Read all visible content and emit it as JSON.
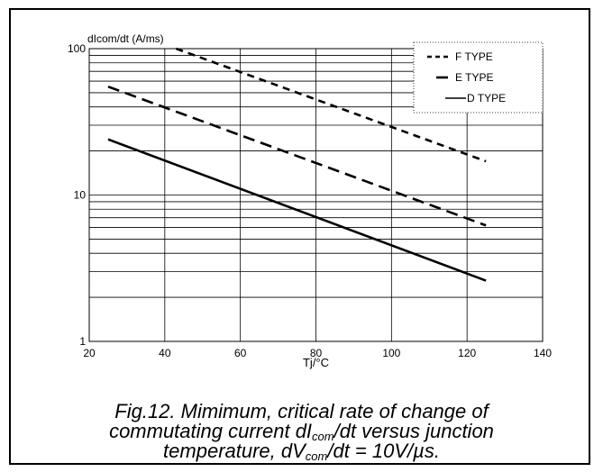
{
  "chart_data": {
    "type": "line",
    "xlabel": "Tj/°C",
    "ylabel": "dIcom/dt (A/ms)",
    "xlim": [
      20,
      140
    ],
    "x_ticks": [
      "20",
      "40",
      "60",
      "80",
      "100",
      "120",
      "140"
    ],
    "ylim": [
      1,
      100
    ],
    "y_scale": "log",
    "y_ticks": [
      "1",
      "10",
      "100"
    ],
    "grid": true,
    "legend_position": "top-right",
    "series": [
      {
        "name": "F TYPE",
        "style": "short-dash",
        "x": [
          43,
          125
        ],
        "y": [
          100,
          17
        ]
      },
      {
        "name": "E TYPE",
        "style": "long-dash",
        "x": [
          25,
          125
        ],
        "y": [
          55,
          6.2
        ]
      },
      {
        "name": "D TYPE",
        "style": "solid",
        "x": [
          25,
          125
        ],
        "y": [
          24,
          2.6
        ]
      }
    ]
  },
  "caption": {
    "line1": "Fig.12.  Mimimum, critical rate of change of",
    "line2_pre": "commutating current dI",
    "line2_sub": "com",
    "line2_post": "/dt versus junction",
    "line3_pre": "temperature, dV",
    "line3_sub": "com",
    "line3_post": "/dt = 10V/µs."
  }
}
